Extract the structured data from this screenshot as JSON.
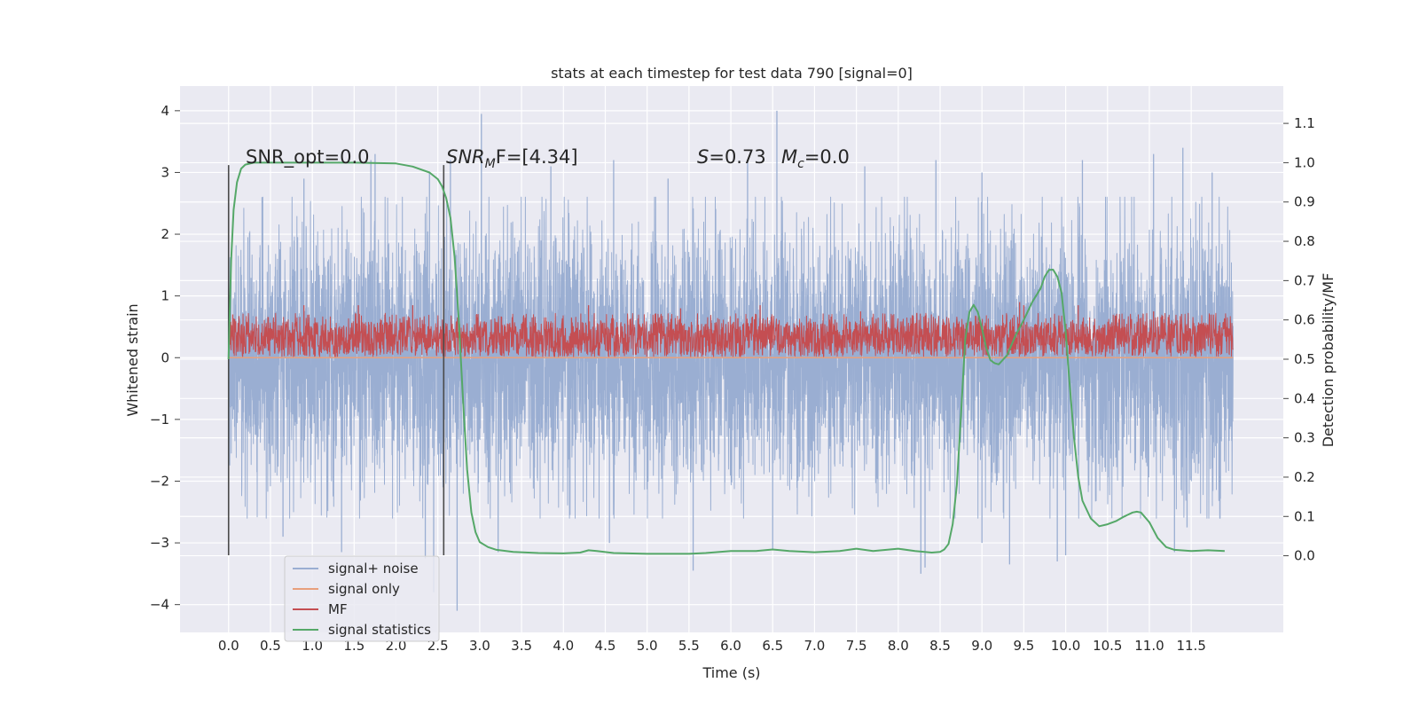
{
  "chart_data": {
    "type": "line",
    "title": "stats at each timestep for test data 790 [signal=0]",
    "xlabel": "Time (s)",
    "ylabel": "Whitened strain",
    "ylabel_right": "Detection probability/MF",
    "xlim": [
      -0.58,
      12.6
    ],
    "ylim": [
      -4.45,
      4.4
    ],
    "ylim_right": [
      -0.195,
      1.195
    ],
    "x_ticks": [
      0.0,
      0.5,
      1.0,
      1.5,
      2.0,
      2.5,
      3.0,
      3.5,
      4.0,
      4.5,
      5.0,
      5.5,
      6.0,
      6.5,
      7.0,
      7.5,
      8.0,
      8.5,
      9.0,
      9.5,
      10.0,
      10.5,
      11.0,
      11.5
    ],
    "x_tick_labels": [
      "0.0",
      "0.5",
      "1.0",
      "1.5",
      "2.0",
      "2.5",
      "3.0",
      "3.5",
      "4.0",
      "4.5",
      "5.0",
      "5.5",
      "6.0",
      "6.5",
      "7.0",
      "7.5",
      "8.0",
      "8.5",
      "9.0",
      "9.5",
      "10.0",
      "10.5",
      "11.0",
      "11.5"
    ],
    "y_ticks": [
      -4,
      -3,
      -2,
      -1,
      0,
      1,
      2,
      3,
      4
    ],
    "y_tick_labels": [
      "−4",
      "−3",
      "−2",
      "−1",
      "0",
      "1",
      "2",
      "3",
      "4"
    ],
    "y_right_ticks": [
      0.0,
      0.1,
      0.2,
      0.3,
      0.4,
      0.5,
      0.6,
      0.7,
      0.8,
      0.9,
      1.0,
      1.1
    ],
    "y_right_tick_labels": [
      "0.0",
      "0.1",
      "0.2",
      "0.3",
      "0.4",
      "0.5",
      "0.6",
      "0.7",
      "0.8",
      "0.9",
      "1.0",
      "1.1"
    ],
    "grid": true,
    "legend_position": "lower-left",
    "annotations": {
      "snr_opt": "SNR_opt=0.0",
      "snr_mf_main": "SNR",
      "snr_mf_sub": "M",
      "snr_mf_rest": "F=[4.34]",
      "s_main": "S",
      "s_rest": "=0.73",
      "mc_main": "M",
      "mc_sub": "c",
      "mc_rest": "=0.0"
    },
    "vertical_lines": [
      {
        "x": 0.0,
        "y_range": [
          -3.2,
          3.12
        ]
      },
      {
        "x": 2.57,
        "y_range": [
          -3.2,
          3.12
        ]
      }
    ],
    "series": [
      {
        "name": "signal+ noise",
        "color": "#9aaed2",
        "axis": "left",
        "style": "noise-band",
        "x_range": [
          0.0,
          12.0
        ],
        "typical_range": [
          -2.5,
          2.5
        ],
        "spikes": [
          {
            "x": 0.4,
            "y": 2.6
          },
          {
            "x": 0.9,
            "y": 2.9
          },
          {
            "x": 1.7,
            "y": 3.2
          },
          {
            "x": 1.75,
            "y": 3.3
          },
          {
            "x": 2.4,
            "y": 3.0
          },
          {
            "x": 2.65,
            "y": 3.2
          },
          {
            "x": 3.02,
            "y": 3.95
          },
          {
            "x": 3.85,
            "y": 3.1
          },
          {
            "x": 4.6,
            "y": 3.2
          },
          {
            "x": 5.25,
            "y": 2.9
          },
          {
            "x": 6.2,
            "y": 3.2
          },
          {
            "x": 6.55,
            "y": 4.0
          },
          {
            "x": 7.6,
            "y": 3.1
          },
          {
            "x": 8.45,
            "y": 3.2
          },
          {
            "x": 9.0,
            "y": 3.0
          },
          {
            "x": 10.2,
            "y": 3.2
          },
          {
            "x": 11.05,
            "y": 3.3
          },
          {
            "x": 11.4,
            "y": 3.4
          },
          {
            "x": 11.75,
            "y": 3.0
          },
          {
            "x": 0.65,
            "y": -2.9
          },
          {
            "x": 1.35,
            "y": -3.15
          },
          {
            "x": 2.35,
            "y": -3.25
          },
          {
            "x": 2.45,
            "y": -3.8
          },
          {
            "x": 2.73,
            "y": -4.1
          },
          {
            "x": 3.22,
            "y": -3.15
          },
          {
            "x": 4.55,
            "y": -3.0
          },
          {
            "x": 5.55,
            "y": -3.45
          },
          {
            "x": 6.5,
            "y": -3.1
          },
          {
            "x": 8.27,
            "y": -3.5
          },
          {
            "x": 8.32,
            "y": -3.4
          },
          {
            "x": 9.0,
            "y": -3.0
          },
          {
            "x": 9.33,
            "y": -3.35
          },
          {
            "x": 9.9,
            "y": -3.3
          },
          {
            "x": 10.0,
            "y": -3.2
          },
          {
            "x": 11.3,
            "y": -3.15
          },
          {
            "x": 11.45,
            "y": -2.75
          }
        ]
      },
      {
        "name": "signal only",
        "color": "#e8a07c",
        "axis": "left",
        "style": "line",
        "x": [
          0.0,
          12.0
        ],
        "y": [
          0.0,
          0.0
        ]
      },
      {
        "name": "MF",
        "color": "#c44e52",
        "axis": "left",
        "style": "noise-band",
        "x_range": [
          0.0,
          12.0
        ],
        "typical_range": [
          0.0,
          0.6
        ],
        "spikes": [
          {
            "x": 0.05,
            "y": 0.7
          },
          {
            "x": 0.9,
            "y": 0.85
          },
          {
            "x": 1.55,
            "y": 0.85
          },
          {
            "x": 2.2,
            "y": 0.85
          },
          {
            "x": 4.3,
            "y": 0.85
          },
          {
            "x": 5.4,
            "y": 0.8
          },
          {
            "x": 6.35,
            "y": 0.85
          },
          {
            "x": 7.55,
            "y": 0.75
          },
          {
            "x": 9.45,
            "y": 0.9
          },
          {
            "x": 9.5,
            "y": 0.85
          },
          {
            "x": 10.15,
            "y": 0.85
          },
          {
            "x": 11.05,
            "y": 0.75
          }
        ]
      },
      {
        "name": "signal statistics",
        "color": "#55a868",
        "axis": "right",
        "style": "line",
        "x": [
          0.0,
          0.03,
          0.06,
          0.1,
          0.15,
          0.2,
          0.3,
          0.5,
          1.0,
          1.5,
          2.0,
          2.2,
          2.4,
          2.5,
          2.55,
          2.6,
          2.65,
          2.7,
          2.75,
          2.8,
          2.85,
          2.9,
          2.95,
          3.0,
          3.1,
          3.2,
          3.4,
          3.7,
          4.0,
          4.2,
          4.3,
          4.4,
          4.6,
          5.0,
          5.5,
          5.7,
          6.0,
          6.3,
          6.5,
          6.7,
          7.0,
          7.3,
          7.5,
          7.7,
          7.9,
          8.0,
          8.2,
          8.4,
          8.5,
          8.55,
          8.6,
          8.65,
          8.7,
          8.75,
          8.8,
          8.85,
          8.9,
          8.95,
          9.0,
          9.05,
          9.1,
          9.15,
          9.2,
          9.3,
          9.4,
          9.5,
          9.6,
          9.7,
          9.75,
          9.8,
          9.85,
          9.9,
          9.95,
          10.0,
          10.05,
          10.1,
          10.15,
          10.2,
          10.3,
          10.4,
          10.5,
          10.6,
          10.7,
          10.8,
          10.85,
          10.9,
          11.0,
          11.1,
          11.2,
          11.3,
          11.5,
          11.7,
          11.9
        ],
        "y": [
          0.5,
          0.75,
          0.88,
          0.95,
          0.985,
          0.995,
          1.0,
          1.0,
          1.0,
          1.0,
          0.998,
          0.99,
          0.975,
          0.958,
          0.94,
          0.91,
          0.86,
          0.76,
          0.6,
          0.4,
          0.22,
          0.11,
          0.06,
          0.035,
          0.022,
          0.015,
          0.01,
          0.007,
          0.006,
          0.008,
          0.014,
          0.012,
          0.007,
          0.005,
          0.005,
          0.007,
          0.012,
          0.012,
          0.016,
          0.012,
          0.009,
          0.012,
          0.018,
          0.012,
          0.016,
          0.018,
          0.012,
          0.008,
          0.01,
          0.016,
          0.03,
          0.08,
          0.18,
          0.36,
          0.55,
          0.62,
          0.638,
          0.62,
          0.578,
          0.53,
          0.498,
          0.49,
          0.487,
          0.51,
          0.56,
          0.6,
          0.645,
          0.68,
          0.71,
          0.727,
          0.728,
          0.71,
          0.67,
          0.57,
          0.43,
          0.3,
          0.2,
          0.14,
          0.095,
          0.075,
          0.08,
          0.088,
          0.1,
          0.11,
          0.112,
          0.11,
          0.085,
          0.045,
          0.022,
          0.015,
          0.012,
          0.014,
          0.012
        ]
      }
    ]
  }
}
